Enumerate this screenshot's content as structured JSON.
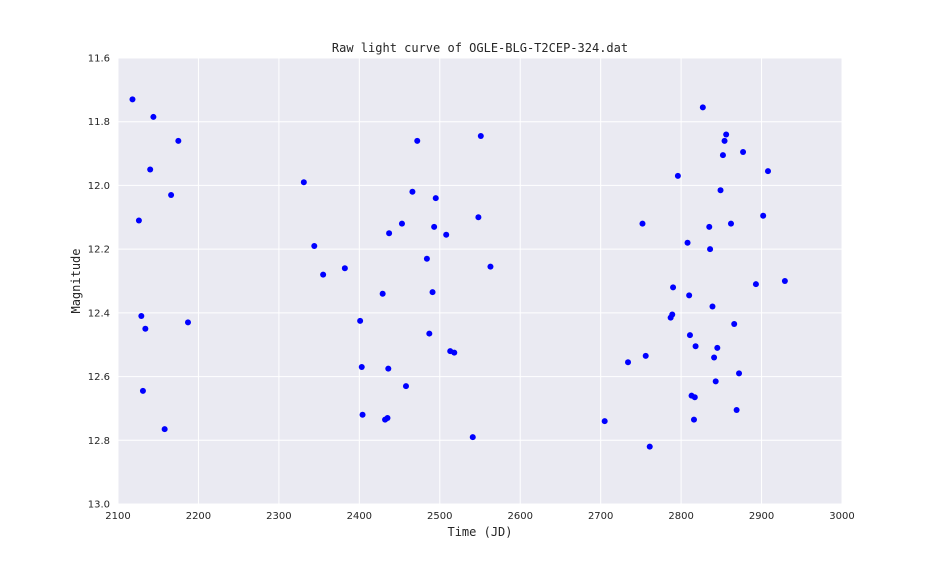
{
  "chart_data": {
    "type": "scatter",
    "title": "Raw light curve of OGLE-BLG-T2CEP-324.dat",
    "xlabel": "Time (JD)",
    "ylabel": "Magnitude",
    "xlim": [
      2100,
      3000
    ],
    "ylim": [
      13.0,
      11.6
    ],
    "y_inverted": true,
    "x_ticks": [
      "2100",
      "2200",
      "2300",
      "2400",
      "2500",
      "2600",
      "2700",
      "2800",
      "2900",
      "3000"
    ],
    "y_ticks": [
      "11.6",
      "11.8",
      "12.0",
      "12.2",
      "12.4",
      "12.6",
      "12.8",
      "13.0"
    ],
    "grid": true,
    "background": "#eaeaf2",
    "marker_color": "#0000ff",
    "points": [
      [
        2118,
        11.73
      ],
      [
        2126,
        12.11
      ],
      [
        2129,
        12.41
      ],
      [
        2131,
        12.645
      ],
      [
        2134,
        12.45
      ],
      [
        2140,
        11.95
      ],
      [
        2144,
        11.785
      ],
      [
        2158,
        12.765
      ],
      [
        2166,
        12.03
      ],
      [
        2175,
        11.86
      ],
      [
        2187,
        12.43
      ],
      [
        2331,
        11.99
      ],
      [
        2344,
        12.19
      ],
      [
        2355,
        12.28
      ],
      [
        2382,
        12.26
      ],
      [
        2401,
        12.425
      ],
      [
        2403,
        12.57
      ],
      [
        2404,
        12.72
      ],
      [
        2429,
        12.34
      ],
      [
        2432,
        12.735
      ],
      [
        2435,
        12.73
      ],
      [
        2436,
        12.575
      ],
      [
        2437,
        12.15
      ],
      [
        2453,
        12.12
      ],
      [
        2458,
        12.63
      ],
      [
        2466,
        12.02
      ],
      [
        2472,
        11.86
      ],
      [
        2484,
        12.23
      ],
      [
        2487,
        12.465
      ],
      [
        2491,
        12.335
      ],
      [
        2493,
        12.13
      ],
      [
        2495,
        12.04
      ],
      [
        2508,
        12.155
      ],
      [
        2513,
        12.52
      ],
      [
        2518,
        12.525
      ],
      [
        2541,
        12.79
      ],
      [
        2548,
        12.1
      ],
      [
        2551,
        11.845
      ],
      [
        2563,
        12.255
      ],
      [
        2705,
        12.74
      ],
      [
        2734,
        12.555
      ],
      [
        2752,
        12.12
      ],
      [
        2756,
        12.535
      ],
      [
        2761,
        12.82
      ],
      [
        2787,
        12.415
      ],
      [
        2789,
        12.405
      ],
      [
        2790,
        12.32
      ],
      [
        2796,
        11.97
      ],
      [
        2808,
        12.18
      ],
      [
        2810,
        12.345
      ],
      [
        2811,
        12.47
      ],
      [
        2813,
        12.66
      ],
      [
        2816,
        12.735
      ],
      [
        2817,
        12.665
      ],
      [
        2818,
        12.505
      ],
      [
        2827,
        11.755
      ],
      [
        2835,
        12.13
      ],
      [
        2836,
        12.2
      ],
      [
        2839,
        12.38
      ],
      [
        2841,
        12.54
      ],
      [
        2843,
        12.615
      ],
      [
        2845,
        12.51
      ],
      [
        2849,
        12.015
      ],
      [
        2852,
        11.905
      ],
      [
        2854,
        11.86
      ],
      [
        2856,
        11.84
      ],
      [
        2862,
        12.12
      ],
      [
        2866,
        12.435
      ],
      [
        2869,
        12.705
      ],
      [
        2872,
        12.59
      ],
      [
        2877,
        11.895
      ],
      [
        2893,
        12.31
      ],
      [
        2902,
        12.095
      ],
      [
        2908,
        11.955
      ],
      [
        2929,
        12.3
      ]
    ]
  }
}
